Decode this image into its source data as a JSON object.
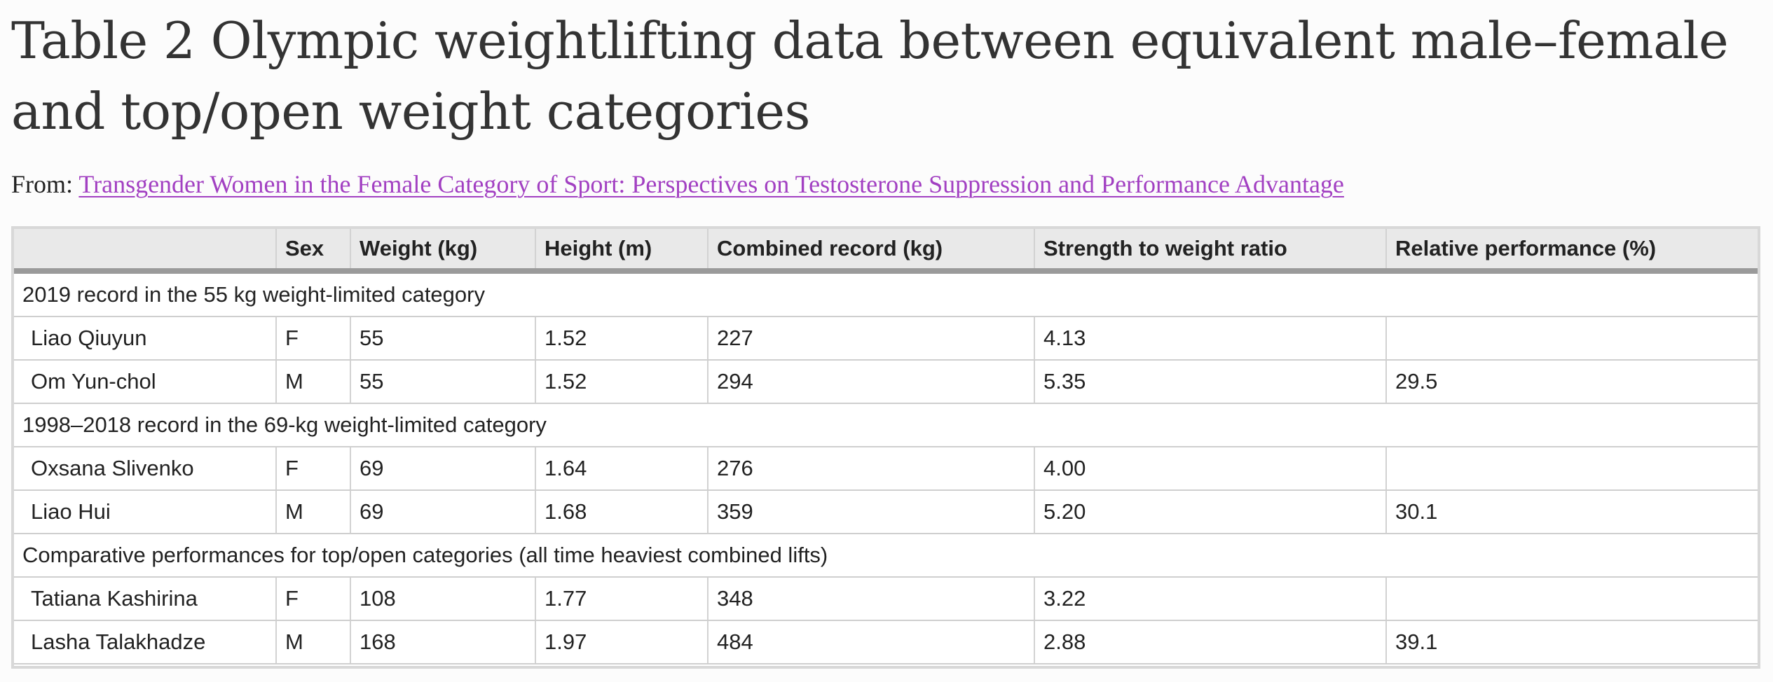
{
  "title": "Table 2 Olympic weightlifting data between equivalent male–female and top/open weight categories",
  "source": {
    "prefix": "From:",
    "link_text": "Transgender Women in the Female Category of Sport: Perspectives on Testosterone Suppression and Performance Advantage"
  },
  "table": {
    "headers": [
      "",
      "Sex",
      "Weight (kg)",
      "Height (m)",
      "Combined record (kg)",
      "Strength to weight ratio",
      "Relative performance (%)"
    ],
    "groups": [
      {
        "label": "2019 record in the 55 kg weight-limited category",
        "rows": [
          [
            "Liao Qiuyun",
            "F",
            "55",
            "1.52",
            "227",
            "4.13",
            ""
          ],
          [
            "Om Yun-chol",
            "M",
            "55",
            "1.52",
            "294",
            "5.35",
            "29.5"
          ]
        ]
      },
      {
        "label": "1998–2018 record in the 69-kg weight-limited category",
        "rows": [
          [
            "Oxsana Slivenko",
            "F",
            "69",
            "1.64",
            "276",
            "4.00",
            ""
          ],
          [
            "Liao Hui",
            "M",
            "69",
            "1.68",
            "359",
            "5.20",
            "30.1"
          ]
        ]
      },
      {
        "label": "Comparative performances for top/open categories (all time heaviest combined lifts)",
        "rows": [
          [
            "Tatiana Kashirina",
            "F",
            "108",
            "1.77",
            "348",
            "3.22",
            ""
          ],
          [
            "Lasha Talakhadze",
            "M",
            "168",
            "1.97",
            "484",
            "2.88",
            "39.1"
          ]
        ]
      }
    ]
  }
}
